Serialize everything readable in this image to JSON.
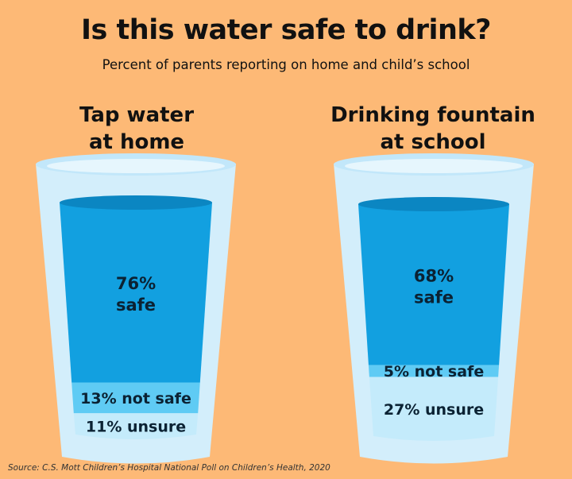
{
  "title": "Is this water safe to drink?",
  "subtitle": "Percent of parents reporting on home and child’s school",
  "source": "Source: C.S. Mott Children’s Hospital National Poll on Children’s Health, 2020",
  "colors": {
    "background": "#fdb976",
    "glass": "#d3eefb",
    "glass_rim": "#c2e7fa",
    "safe": "#12a0e0",
    "safe_top": "#0b86c2",
    "not_safe": "#5fcbf4",
    "unsure": "#c4ebfb"
  },
  "chart_data": {
    "type": "stacked-bar",
    "units": "percent",
    "glasses": [
      {
        "title_line1": "Tap water",
        "title_line2": "at home",
        "segments": [
          {
            "label": "safe",
            "value": 76
          },
          {
            "label": "not safe",
            "value": 13
          },
          {
            "label": "unsure",
            "value": 11
          }
        ],
        "labels": {
          "safe_value": "76%",
          "safe_text": "safe",
          "not_safe": "13% not safe",
          "unsure": "11% unsure"
        }
      },
      {
        "title_line1": "Drinking fountain",
        "title_line2": "at school",
        "segments": [
          {
            "label": "safe",
            "value": 68
          },
          {
            "label": "not safe",
            "value": 5
          },
          {
            "label": "unsure",
            "value": 27
          }
        ],
        "labels": {
          "safe_value": "68%",
          "safe_text": "safe",
          "not_safe": "5% not safe",
          "unsure": "27% unsure"
        }
      }
    ]
  }
}
